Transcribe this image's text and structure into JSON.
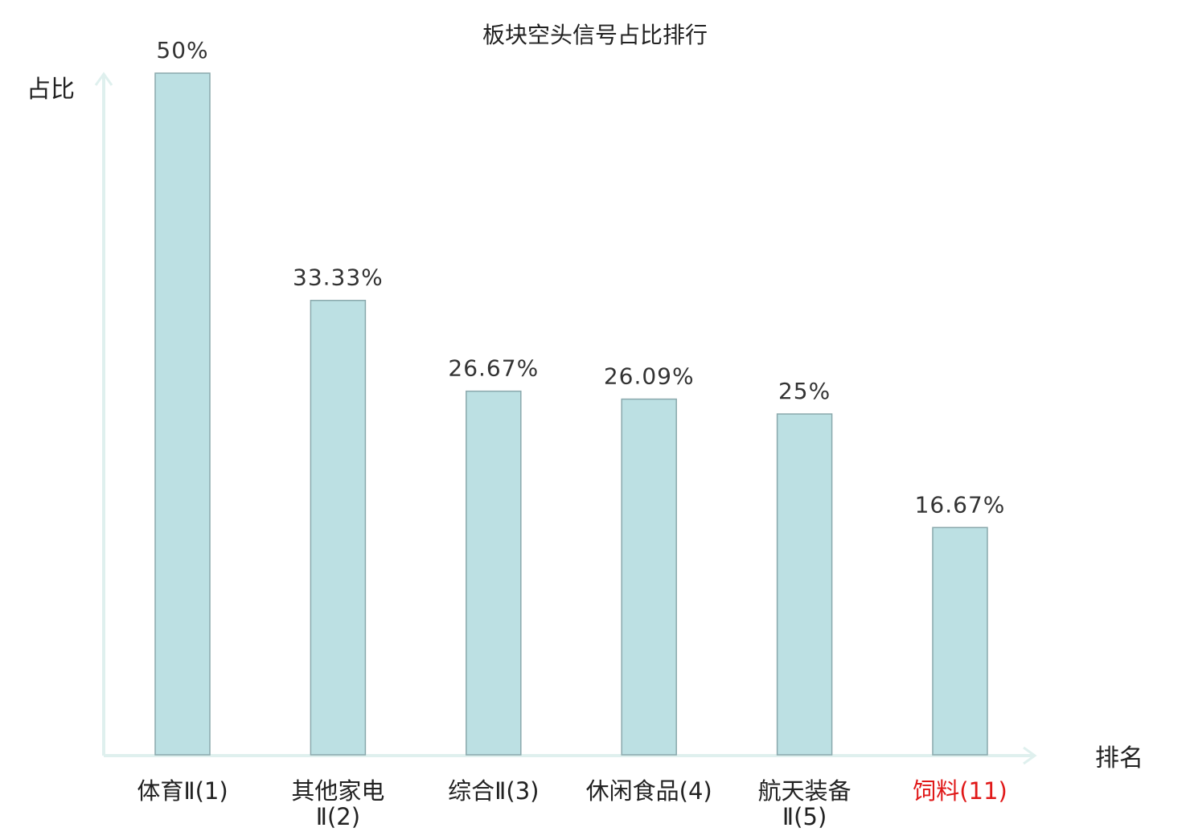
{
  "chart_data": {
    "type": "bar",
    "title": "板块空头信号占比排行",
    "ylabel": "占比",
    "xlabel": "排名",
    "categories": [
      {
        "name": "体育Ⅱ",
        "rank": "(1)",
        "lines": [
          "体育Ⅱ(1)"
        ],
        "highlight": false
      },
      {
        "name": "其他家电Ⅱ",
        "rank": "(2)",
        "lines": [
          "其他家电",
          "Ⅱ(2)"
        ],
        "highlight": false
      },
      {
        "name": "综合Ⅱ",
        "rank": "(3)",
        "lines": [
          "综合Ⅱ(3)"
        ],
        "highlight": false
      },
      {
        "name": "休闲食品",
        "rank": "(4)",
        "lines": [
          "休闲食品(4)"
        ],
        "highlight": false
      },
      {
        "name": "航天装备Ⅱ",
        "rank": "(5)",
        "lines": [
          "航天装备",
          "Ⅱ(5)"
        ],
        "highlight": false
      },
      {
        "name": "饲料",
        "rank": "(11)",
        "lines": [
          "饲料(11)"
        ],
        "highlight": true
      }
    ],
    "values": [
      50,
      33.33,
      26.67,
      26.09,
      25,
      16.67
    ],
    "value_labels": [
      "50%",
      "33.33%",
      "26.67%",
      "26.09%",
      "25%",
      "16.67%"
    ],
    "ylim": [
      0,
      50
    ],
    "grid": false,
    "legend": "none",
    "colors": {
      "bar_fill": "#bce0e3",
      "bar_stroke": "#8aa8ac",
      "axis": "#dff0ee",
      "highlight_text": "#e01818"
    }
  }
}
